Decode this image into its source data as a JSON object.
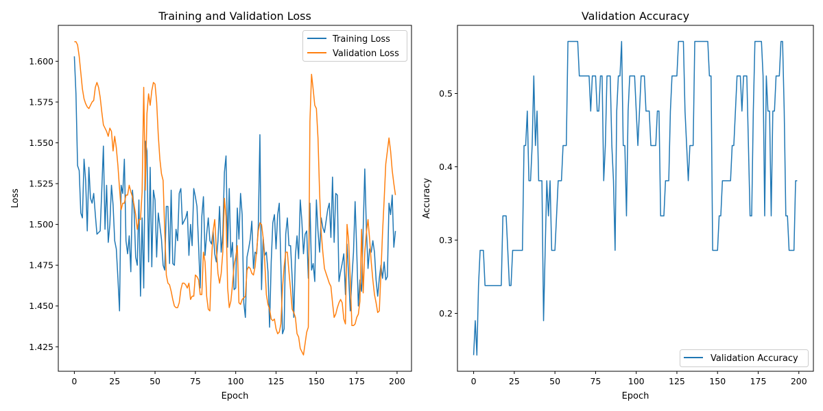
{
  "chart_data": [
    {
      "type": "line",
      "title": "Training and Validation Loss",
      "xlabel": "Epoch",
      "ylabel": "Loss",
      "xlim": [
        -9.95,
        208.95
      ],
      "ylim": [
        1.41,
        1.622
      ],
      "xticks": [
        0,
        25,
        50,
        75,
        100,
        125,
        150,
        175,
        200
      ],
      "yticks": [
        1.425,
        1.45,
        1.475,
        1.5,
        1.525,
        1.55,
        1.575,
        1.6
      ],
      "ytick_labels": [
        "1.425",
        "1.450",
        "1.475",
        "1.500",
        "1.525",
        "1.550",
        "1.575",
        "1.600"
      ],
      "grid": false,
      "legend": "top-right",
      "x_start": 0,
      "series": [
        {
          "name": "Training Loss",
          "color": "#1f77b4",
          "values": [
            1.603,
            1.58,
            1.536,
            1.533,
            1.507,
            1.504,
            1.54,
            1.527,
            1.496,
            1.535,
            1.516,
            1.513,
            1.519,
            1.506,
            1.494,
            1.495,
            1.496,
            1.521,
            1.548,
            1.497,
            1.524,
            1.489,
            1.5,
            1.524,
            1.512,
            1.49,
            1.485,
            1.467,
            1.447,
            1.524,
            1.519,
            1.54,
            1.49,
            1.482,
            1.493,
            1.471,
            1.521,
            1.509,
            1.48,
            1.475,
            1.515,
            1.456,
            1.504,
            1.461,
            1.551,
            1.545,
            1.477,
            1.535,
            1.474,
            1.521,
            1.515,
            1.48,
            1.507,
            1.499,
            1.491,
            1.475,
            1.472,
            1.511,
            1.511,
            1.476,
            1.521,
            1.476,
            1.475,
            1.497,
            1.49,
            1.519,
            1.522,
            1.5,
            1.502,
            1.504,
            1.508,
            1.481,
            1.5,
            1.487,
            1.522,
            1.517,
            1.511,
            1.487,
            1.461,
            1.505,
            1.517,
            1.481,
            1.494,
            1.504,
            1.49,
            1.488,
            1.496,
            1.482,
            1.477,
            1.49,
            1.511,
            1.483,
            1.494,
            1.532,
            1.542,
            1.486,
            1.522,
            1.48,
            1.489,
            1.46,
            1.461,
            1.51,
            1.491,
            1.519,
            1.506,
            1.452,
            1.443,
            1.48,
            1.485,
            1.491,
            1.502,
            1.473,
            1.483,
            1.482,
            1.499,
            1.555,
            1.46,
            1.492,
            1.481,
            1.483,
            1.471,
            1.437,
            1.477,
            1.501,
            1.506,
            1.485,
            1.506,
            1.513,
            1.475,
            1.433,
            1.436,
            1.494,
            1.504,
            1.487,
            1.487,
            1.467,
            1.443,
            1.481,
            1.493,
            1.479,
            1.515,
            1.502,
            1.482,
            1.494,
            1.496,
            1.467,
            1.513,
            1.472,
            1.476,
            1.465,
            1.515,
            1.496,
            1.483,
            1.504,
            1.498,
            1.495,
            1.502,
            1.509,
            1.513,
            1.492,
            1.529,
            1.489,
            1.519,
            1.518,
            1.465,
            1.471,
            1.476,
            1.482,
            1.457,
            1.488,
            1.468,
            1.447,
            1.467,
            1.483,
            1.514,
            1.484,
            1.45,
            1.466,
            1.459,
            1.497,
            1.534,
            1.497,
            1.473,
            1.485,
            1.483,
            1.49,
            1.483,
            1.466,
            1.456,
            1.467,
            1.475,
            1.467,
            1.477,
            1.466,
            1.468,
            1.513,
            1.506,
            1.518,
            1.486,
            1.496
          ]
        },
        {
          "name": "Validation Loss",
          "color": "#ff7f0e",
          "values": [
            1.612,
            1.612,
            1.61,
            1.603,
            1.593,
            1.583,
            1.577,
            1.574,
            1.572,
            1.571,
            1.573,
            1.575,
            1.576,
            1.584,
            1.587,
            1.584,
            1.578,
            1.569,
            1.561,
            1.559,
            1.557,
            1.554,
            1.559,
            1.557,
            1.545,
            1.554,
            1.547,
            1.536,
            1.522,
            1.509,
            1.513,
            1.513,
            1.518,
            1.518,
            1.524,
            1.52,
            1.517,
            1.512,
            1.506,
            1.497,
            1.503,
            1.503,
            1.52,
            1.584,
            1.521,
            1.568,
            1.58,
            1.573,
            1.582,
            1.587,
            1.586,
            1.575,
            1.555,
            1.54,
            1.531,
            1.527,
            1.496,
            1.469,
            1.464,
            1.463,
            1.459,
            1.454,
            1.45,
            1.449,
            1.449,
            1.452,
            1.46,
            1.464,
            1.464,
            1.463,
            1.461,
            1.464,
            1.454,
            1.456,
            1.456,
            1.469,
            1.468,
            1.466,
            1.457,
            1.457,
            1.483,
            1.477,
            1.456,
            1.448,
            1.447,
            1.478,
            1.496,
            1.503,
            1.485,
            1.47,
            1.464,
            1.47,
            1.483,
            1.516,
            1.505,
            1.461,
            1.449,
            1.453,
            1.463,
            1.475,
            1.48,
            1.487,
            1.452,
            1.451,
            1.454,
            1.455,
            1.456,
            1.472,
            1.474,
            1.473,
            1.47,
            1.469,
            1.474,
            1.484,
            1.496,
            1.501,
            1.5,
            1.492,
            1.477,
            1.457,
            1.451,
            1.448,
            1.442,
            1.441,
            1.442,
            1.436,
            1.433,
            1.434,
            1.439,
            1.461,
            1.474,
            1.483,
            1.483,
            1.471,
            1.46,
            1.448,
            1.446,
            1.443,
            1.433,
            1.431,
            1.424,
            1.422,
            1.42,
            1.427,
            1.434,
            1.437,
            1.563,
            1.592,
            1.583,
            1.573,
            1.571,
            1.553,
            1.519,
            1.495,
            1.483,
            1.473,
            1.47,
            1.467,
            1.464,
            1.462,
            1.452,
            1.443,
            1.445,
            1.449,
            1.452,
            1.454,
            1.452,
            1.442,
            1.439,
            1.5,
            1.49,
            1.466,
            1.438,
            1.438,
            1.439,
            1.443,
            1.445,
            1.453,
            1.497,
            1.458,
            1.483,
            1.495,
            1.503,
            1.491,
            1.477,
            1.466,
            1.457,
            1.452,
            1.446,
            1.447,
            1.47,
            1.495,
            1.515,
            1.537,
            1.545,
            1.553,
            1.545,
            1.533,
            1.525,
            1.518
          ]
        }
      ]
    },
    {
      "type": "line",
      "title": "Validation Accuracy",
      "xlabel": "Epoch",
      "ylabel": "Accuracy",
      "xlim": [
        -9.95,
        208.95
      ],
      "ylim": [
        0.121,
        0.593
      ],
      "xticks": [
        0,
        25,
        50,
        75,
        100,
        125,
        150,
        175,
        200
      ],
      "yticks": [
        0.2,
        0.3,
        0.4,
        0.5
      ],
      "ytick_labels": [
        "0.2",
        "0.3",
        "0.4",
        "0.5"
      ],
      "grid": false,
      "legend": "bottom-right",
      "x_start": 0,
      "series": [
        {
          "name": "Validation Accuracy",
          "color": "#1f77b4",
          "values": [
            0.143,
            0.19,
            0.143,
            0.238,
            0.286,
            0.286,
            0.286,
            0.238,
            0.238,
            0.238,
            0.238,
            0.238,
            0.238,
            0.238,
            0.238,
            0.238,
            0.238,
            0.238,
            0.333,
            0.333,
            0.333,
            0.286,
            0.238,
            0.238,
            0.286,
            0.286,
            0.286,
            0.286,
            0.286,
            0.286,
            0.286,
            0.429,
            0.429,
            0.476,
            0.381,
            0.381,
            0.429,
            0.524,
            0.429,
            0.476,
            0.381,
            0.381,
            0.381,
            0.19,
            0.286,
            0.381,
            0.333,
            0.381,
            0.286,
            0.286,
            0.286,
            0.333,
            0.381,
            0.381,
            0.381,
            0.429,
            0.429,
            0.429,
            0.571,
            0.571,
            0.571,
            0.571,
            0.571,
            0.571,
            0.571,
            0.524,
            0.524,
            0.524,
            0.524,
            0.524,
            0.524,
            0.524,
            0.476,
            0.524,
            0.524,
            0.524,
            0.476,
            0.476,
            0.524,
            0.524,
            0.381,
            0.429,
            0.524,
            0.524,
            0.524,
            0.429,
            0.381,
            0.286,
            0.476,
            0.524,
            0.524,
            0.571,
            0.429,
            0.429,
            0.333,
            0.476,
            0.524,
            0.524,
            0.524,
            0.524,
            0.476,
            0.429,
            0.476,
            0.524,
            0.524,
            0.524,
            0.476,
            0.476,
            0.476,
            0.429,
            0.429,
            0.429,
            0.429,
            0.476,
            0.476,
            0.333,
            0.333,
            0.333,
            0.381,
            0.381,
            0.381,
            0.476,
            0.524,
            0.524,
            0.524,
            0.524,
            0.571,
            0.571,
            0.571,
            0.571,
            0.476,
            0.429,
            0.381,
            0.429,
            0.429,
            0.429,
            0.571,
            0.571,
            0.571,
            0.571,
            0.571,
            0.571,
            0.571,
            0.571,
            0.571,
            0.524,
            0.524,
            0.286,
            0.286,
            0.286,
            0.286,
            0.333,
            0.333,
            0.381,
            0.381,
            0.381,
            0.381,
            0.381,
            0.381,
            0.429,
            0.429,
            0.476,
            0.524,
            0.524,
            0.524,
            0.476,
            0.524,
            0.524,
            0.524,
            0.429,
            0.333,
            0.333,
            0.476,
            0.571,
            0.571,
            0.571,
            0.571,
            0.571,
            0.524,
            0.333,
            0.524,
            0.476,
            0.476,
            0.333,
            0.476,
            0.476,
            0.524,
            0.524,
            0.524,
            0.571,
            0.571,
            0.476,
            0.333,
            0.333,
            0.286,
            0.286,
            0.286,
            0.286,
            0.381,
            0.381
          ]
        }
      ]
    }
  ]
}
